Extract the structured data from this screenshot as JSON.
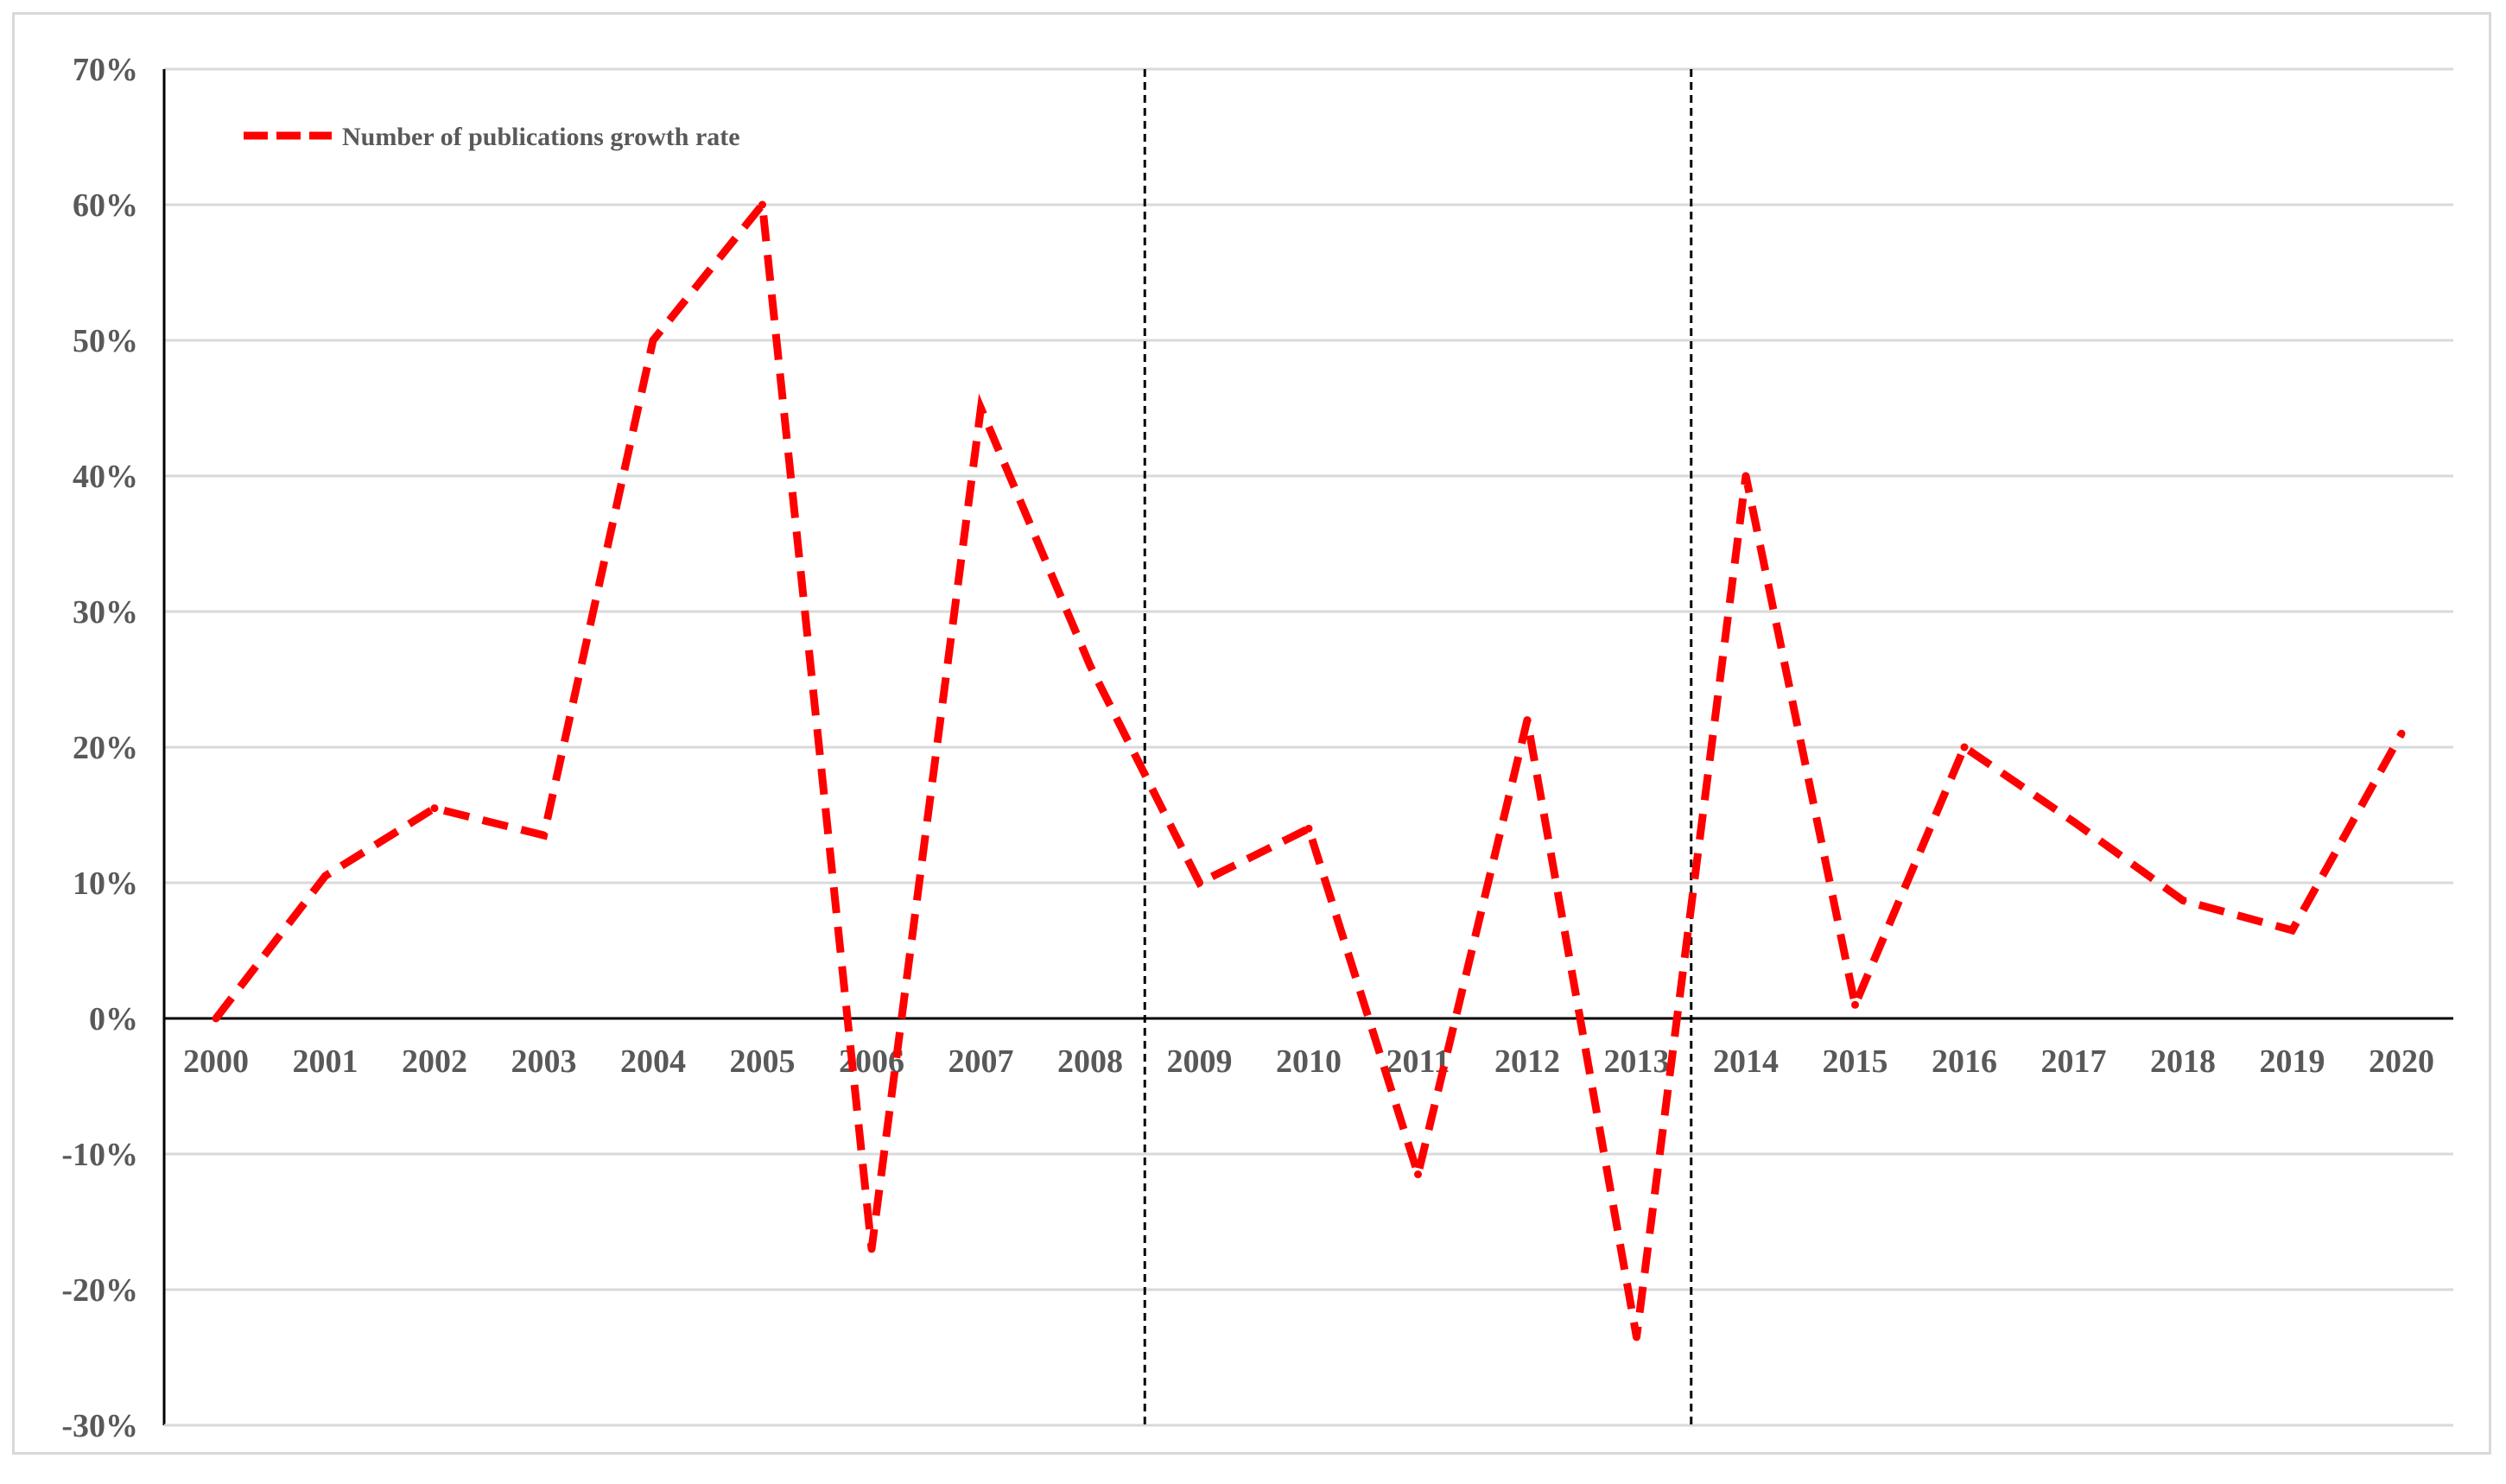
{
  "chart_data": {
    "type": "line",
    "title": "",
    "xlabel": "",
    "ylabel": "",
    "ylim": [
      -0.3,
      0.7
    ],
    "yticks": [
      0.7,
      0.6,
      0.5,
      0.4,
      0.3,
      0.2,
      0.1,
      0.0,
      -0.1,
      -0.2,
      -0.3
    ],
    "ytick_labels": [
      "70%",
      "60%",
      "50%",
      "40%",
      "30%",
      "20%",
      "10%",
      "0%",
      "-10%",
      "-20%",
      "-30%"
    ],
    "categories": [
      "2000",
      "2001",
      "2002",
      "2003",
      "2004",
      "2005",
      "2006",
      "2007",
      "2008",
      "2009",
      "2010",
      "2011",
      "2012",
      "2013",
      "2014",
      "2015",
      "2016",
      "2017",
      "2018",
      "2019",
      "2020"
    ],
    "series": [
      {
        "name": "Number of publications growth rate",
        "color": "#ff0000",
        "style": "dashed",
        "values": [
          0.0,
          0.105,
          0.155,
          0.135,
          0.5,
          0.6,
          -0.17,
          0.45,
          0.26,
          0.1,
          0.14,
          -0.115,
          0.22,
          -0.235,
          0.4,
          0.01,
          0.2,
          0.145,
          0.087,
          0.065,
          0.21
        ]
      }
    ],
    "vertical_separators_after": [
      "2008",
      "2013"
    ],
    "grid": true,
    "gridline_color": "#d9d9d9",
    "legend": {
      "position": "top-left"
    }
  }
}
